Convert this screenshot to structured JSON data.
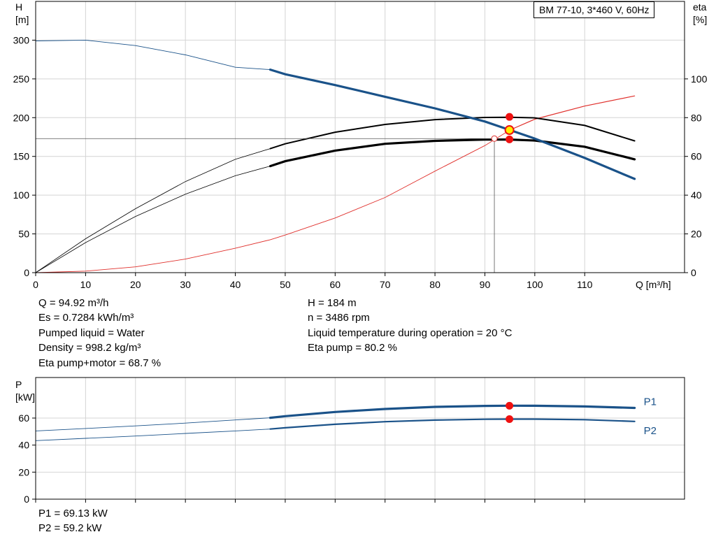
{
  "title_box": "BM 77-10, 3*460 V, 60Hz",
  "info_left": [
    "Q = 94.92 m³/h",
    "Es = 0.7284 kWh/m³",
    "Pumped liquid = Water",
    "Density = 998.2 kg/m³",
    "Eta pump+motor = 68.7 %"
  ],
  "info_right": [
    "H = 184 m",
    "n = 3486 rpm",
    "Liquid temperature during operation = 20 °C",
    "Eta pump = 80.2 %"
  ],
  "info_bottom": [
    "P1 = 69.13 kW",
    "P2 = 59.2 kW"
  ],
  "colors": {
    "head": "#1a5289",
    "efficiency": "#000000",
    "npsh": "#e0302c",
    "power": "#1a5289",
    "marker": "#ee1111",
    "duty": "#ffee00",
    "grid": "#d4d4d4"
  },
  "chart_data": [
    {
      "type": "line",
      "x": [
        0,
        10,
        20,
        30,
        40,
        47,
        50,
        60,
        70,
        80,
        90,
        95,
        100,
        110,
        120
      ],
      "xlabel": "Q [m³/h]",
      "x_ticks": [
        "0",
        "10",
        "20",
        "30",
        "40",
        "50",
        "60",
        "70",
        "80",
        "90",
        "100",
        "110"
      ],
      "xlim": [
        0,
        130
      ],
      "ylabel_left": "H\n[m]",
      "y_left_ticks": [
        "0",
        "50",
        "100",
        "150",
        "200",
        "250",
        "300"
      ],
      "ylim_left": [
        0,
        350
      ],
      "ylabel_right": "eta\n[%]",
      "y_right_ticks": [
        "0",
        "20",
        "40",
        "60",
        "80",
        "100"
      ],
      "ylim_right": [
        0,
        140
      ],
      "grid": true,
      "series": [
        {
          "axis": "left",
          "operating_from": 47,
          "values": [
            299,
            300,
            293,
            281,
            265,
            262,
            256,
            242,
            227,
            212,
            195,
            184,
            173,
            148,
            121
          ]
        },
        {
          "axis": "right",
          "operating_from": 47,
          "values": [
            0,
            17.5,
            33,
            47,
            58.5,
            64,
            66.5,
            72.5,
            76.5,
            79,
            80.1,
            80.2,
            79.9,
            76,
            68
          ]
        },
        {
          "axis": "right",
          "operating_from": 47,
          "values": [
            0,
            15.5,
            29,
            40.5,
            50,
            55,
            57.5,
            63,
            66.5,
            68,
            68.7,
            68.7,
            68.2,
            65,
            58.5
          ]
        },
        {
          "axis": "left",
          "operating_from": 94.92,
          "values": [
            0,
            2,
            7.5,
            17.5,
            31.5,
            42.5,
            48.5,
            70.5,
            97,
            131,
            164,
            184,
            198,
            215,
            228
          ]
        }
      ],
      "markers": [
        {
          "x": 94.92,
          "y": 201,
          "axis": "left"
        },
        {
          "x": 94.92,
          "y": 184,
          "axis": "left",
          "duty": true
        },
        {
          "x": 94.92,
          "y": 172,
          "axis": "left"
        },
        {
          "x": 91.9,
          "y": 173,
          "axis": "left",
          "open": true
        }
      ],
      "reference_lines": {
        "h": 173,
        "q": 91.9
      }
    },
    {
      "type": "line",
      "x": [
        0,
        10,
        20,
        30,
        40,
        47,
        50,
        60,
        70,
        80,
        90,
        95,
        100,
        110,
        120
      ],
      "ylabel": "P\n[kW]",
      "y_ticks": [
        "0",
        "20",
        "40",
        "60"
      ],
      "ylim": [
        0,
        90
      ],
      "grid": true,
      "series": [
        {
          "name": "P1",
          "operating_from": 47,
          "values": [
            50.5,
            52.3,
            54.2,
            56.3,
            58.6,
            60.2,
            61.4,
            64.5,
            66.7,
            68.3,
            69.0,
            69.13,
            69.1,
            68.6,
            67.5
          ]
        },
        {
          "name": "P2",
          "operating_from": 47,
          "values": [
            43.3,
            45,
            46.7,
            48.6,
            50.5,
            51.9,
            52.8,
            55.4,
            57.3,
            58.5,
            59.1,
            59.2,
            59.2,
            58.8,
            57.5
          ]
        }
      ],
      "markers": [
        {
          "x": 94.92,
          "y": 69.13
        },
        {
          "x": 94.92,
          "y": 59.2
        }
      ]
    }
  ]
}
